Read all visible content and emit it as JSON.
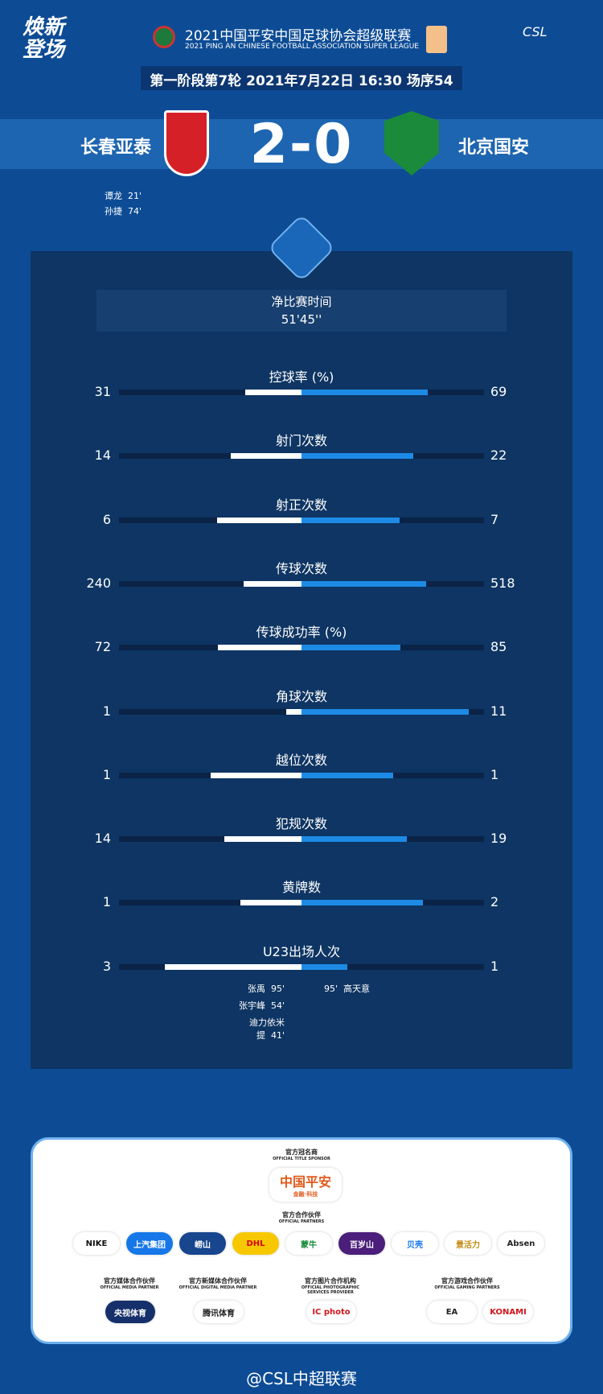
{
  "header": {
    "slogan": "焕新登场",
    "title_cn": "2021中国平安中国足球协会超级联赛",
    "title_en": "2021 PING AN CHINESE FOOTBALL ASSOCIATION SUPER LEAGUE",
    "league_logo": "CSL",
    "round_info": "第一阶段第7轮  2021年7月22日 16:30 场序54"
  },
  "match": {
    "home": "长春亚泰",
    "away": "北京国安",
    "score": "2-0",
    "home_scorers": [
      {
        "name": "谭龙",
        "minute": "21'"
      },
      {
        "name": "孙捷",
        "minute": "74'"
      }
    ]
  },
  "net_time": {
    "label": "净比赛时间",
    "value": "51'45''"
  },
  "stats": [
    {
      "label": "控球率 (%)",
      "home": 31,
      "away": 69
    },
    {
      "label": "射门次数",
      "home": 14,
      "away": 22
    },
    {
      "label": "射正次数",
      "home": 6,
      "away": 7
    },
    {
      "label": "传球次数",
      "home": 240,
      "away": 518
    },
    {
      "label": "传球成功率 (%)",
      "home": 72,
      "away": 85
    },
    {
      "label": "角球次数",
      "home": 1,
      "away": 11
    },
    {
      "label": "越位次数",
      "home": 1,
      "away": 1
    },
    {
      "label": "犯规次数",
      "home": 14,
      "away": 19
    },
    {
      "label": "黄牌数",
      "home": 1,
      "away": 2
    },
    {
      "label": "U23出场人次",
      "home": 3,
      "away": 1
    }
  ],
  "u23": {
    "home": [
      {
        "name": "张禹",
        "minutes": "95'"
      },
      {
        "name": "张宇峰",
        "minutes": "54'"
      },
      {
        "name": "迪力依米提",
        "minutes": "41'"
      }
    ],
    "away": [
      {
        "name": "高天意",
        "minutes": "95'"
      }
    ]
  },
  "sponsors": {
    "title_sponsor_label": "官方冠名商",
    "title_sponsor_en": "OFFICIAL TITLE SPONSOR",
    "title_sponsor": "中国平安",
    "title_sponsor_sub": "金融·科技",
    "partners_label": "官方合作伙伴",
    "partners_en": "OFFICIAL PARTNERS",
    "partners": [
      "NIKE",
      "上汽集团",
      "崂山",
      "DHL",
      "蒙牛",
      "百岁山",
      "贝壳",
      "景活力",
      "Absen"
    ],
    "groups": [
      {
        "label": "官方媒体合作伙伴",
        "en": "OFFICIAL MEDIA PARTNER",
        "logos": [
          "央视体育"
        ]
      },
      {
        "label": "官方新媒体合作伙伴",
        "en": "OFFICIAL DIGITAL MEDIA PARTNER",
        "logos": [
          "腾讯体育"
        ]
      },
      {
        "label": "官方图片合作机构",
        "en": "OFFICIAL PHOTOGRAPHIC SERVICES PROVIDER",
        "logos": [
          "IC photo"
        ]
      },
      {
        "label": "官方游戏合作伙伴",
        "en": "OFFICIAL GAMING PARTNERS",
        "logos": [
          "EA",
          "KONAMI"
        ]
      }
    ]
  },
  "footer": {
    "weibo": "@CSL中超联赛"
  },
  "colors": {
    "background": "#0d4c95",
    "panel": "#0e3563",
    "home_bar": "#ffffff",
    "away_bar": "#1d8be6"
  }
}
